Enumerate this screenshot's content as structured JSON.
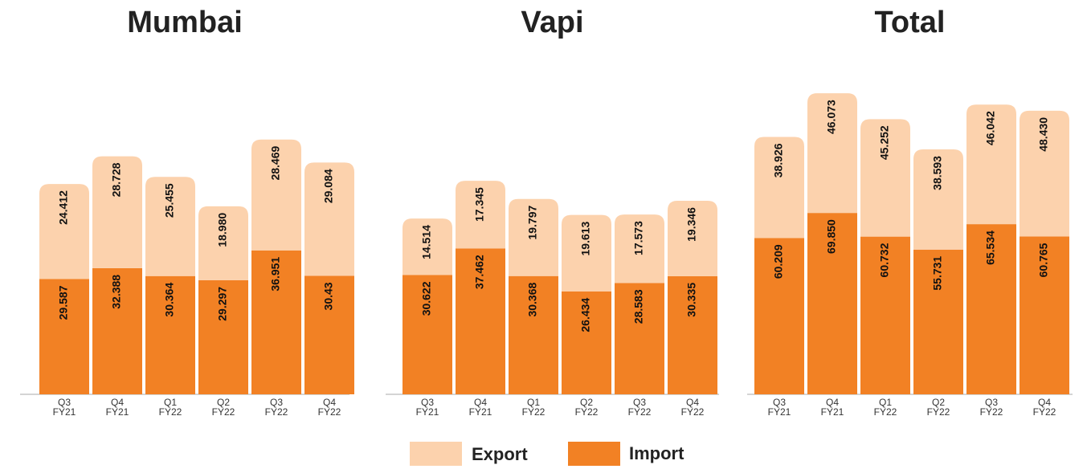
{
  "chart_data": [
    {
      "type": "stacked_bar",
      "title": "Mumbai",
      "categories": [
        "Q3 FY21",
        "Q4 FY21",
        "Q1 FY22",
        "Q2 FY22",
        "Q3 FY22",
        "Q4 FY22"
      ],
      "ylim": [
        0,
        80
      ],
      "series": [
        {
          "name": "Import",
          "color": "#f28124",
          "values": [
            29.587,
            32.388,
            30.364,
            29.297,
            36.951,
            30.43
          ],
          "value_labels": [
            "29.587",
            "32.388",
            "30.364",
            "29.297",
            "36.951",
            "30.43"
          ]
        },
        {
          "name": "Export",
          "color": "#fcd2ad",
          "values": [
            24.412,
            28.728,
            25.455,
            18.98,
            28.469,
            29.084
          ],
          "value_labels": [
            "24.412",
            "28.728",
            "25.455",
            "18.980",
            "28.469",
            "29.084"
          ]
        }
      ]
    },
    {
      "type": "stacked_bar",
      "title": "Vapi",
      "categories": [
        "Q3 FY21",
        "Q4 FY21",
        "Q1 FY22",
        "Q2 FY22",
        "Q3 FY22",
        "Q4 FY22"
      ],
      "ylim": [
        0,
        80
      ],
      "series": [
        {
          "name": "Import",
          "color": "#f28124",
          "values": [
            30.622,
            37.462,
            30.368,
            26.434,
            28.583,
            30.335
          ],
          "value_labels": [
            "30.622",
            "37.462",
            "30.368",
            "26.434",
            "28.583",
            "30.335"
          ]
        },
        {
          "name": "Export",
          "color": "#fcd2ad",
          "values": [
            14.514,
            17.345,
            19.797,
            19.613,
            17.573,
            19.346
          ],
          "value_labels": [
            "14.514",
            "17.345",
            "19.797",
            "19.613",
            "17.573",
            "19.346"
          ]
        }
      ]
    },
    {
      "type": "stacked_bar",
      "title": "Total",
      "categories": [
        "Q3 FY21",
        "Q4 FY21",
        "Q1 FY22",
        "Q2 FY22",
        "Q3 FY22",
        "Q4 FY22"
      ],
      "ylim": [
        0,
        120
      ],
      "series": [
        {
          "name": "Import",
          "color": "#f28124",
          "values": [
            60.209,
            69.85,
            60.732,
            55.731,
            65.534,
            60.765
          ],
          "value_labels": [
            "60.209",
            "69.850",
            "60.732",
            "55.731",
            "65.534",
            "60.765"
          ]
        },
        {
          "name": "Export",
          "color": "#fcd2ad",
          "values": [
            38.926,
            46.073,
            45.252,
            38.593,
            46.042,
            48.43
          ],
          "value_labels": [
            "38.926",
            "46.073",
            "45.252",
            "38.593",
            "46.042",
            "48.430"
          ]
        }
      ]
    }
  ]
}
